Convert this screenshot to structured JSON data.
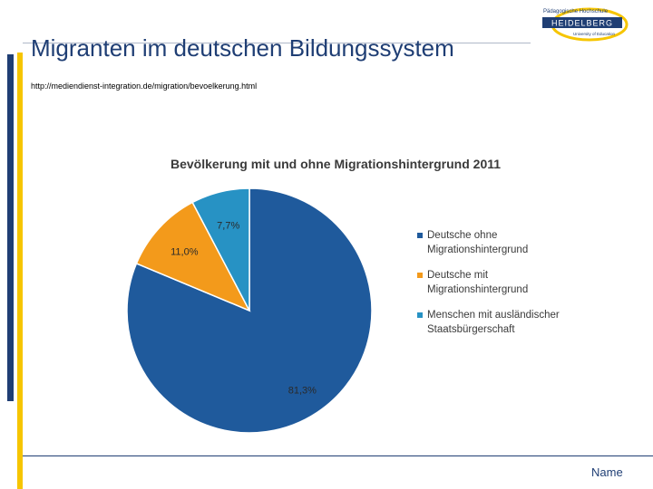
{
  "slide": {
    "title": "Migranten im deutschen Bildungssystem",
    "source": "http://mediendienst-integration.de/migration/bevoelkerung.html",
    "footer": "Name"
  },
  "logo": {
    "top_text": "Pädagogische Hochschule",
    "main_text": "HEIDELBERG",
    "sub_text": "University of Education",
    "colors": {
      "navy": "#1f3e74",
      "gold": "#f6c500"
    }
  },
  "chart_data": {
    "type": "pie",
    "title": "Bevölkerung mit und ohne Migrationshintergrund 2011",
    "legend_position": "right",
    "slices": [
      {
        "name": "Deutsche ohne Migrationshintergrund",
        "legend_lines": [
          "Deutsche ohne",
          "Migrationshintergrund"
        ],
        "value": 81.3,
        "label": "81,3%",
        "color": "#1f5a9c"
      },
      {
        "name": "Deutsche mit Migrationshintergrund",
        "legend_lines": [
          "Deutsche mit",
          "Migrationshintergrund"
        ],
        "value": 11.0,
        "label": "11,0%",
        "color": "#f39a1b"
      },
      {
        "name": "Menschen mit ausländischer Staatsbürgerschaft",
        "legend_lines": [
          "Menschen mit ausländischer",
          "Staatsbürgerschaft"
        ],
        "value": 7.7,
        "label": "7,7%",
        "color": "#2792c4"
      }
    ]
  }
}
